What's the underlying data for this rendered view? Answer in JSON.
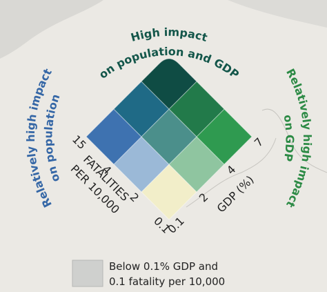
{
  "headings": {
    "top": [
      "High impact",
      "on population and GDP"
    ],
    "left": [
      "Relatively high impact",
      "on population"
    ],
    "right": [
      "Relatively high impact",
      "on GDP"
    ]
  },
  "axes": {
    "fatalities": {
      "title": [
        "FATALITIES",
        "PER 10,000"
      ],
      "ticks": [
        "0.1",
        "2",
        "4",
        "15"
      ]
    },
    "gdp": {
      "title": "GDP (%)",
      "ticks": [
        "0.1",
        "2",
        "4",
        "7"
      ]
    }
  },
  "note": [
    "Below 0.1% GDP and",
    "0.1 fatality per 10,000"
  ]
}
